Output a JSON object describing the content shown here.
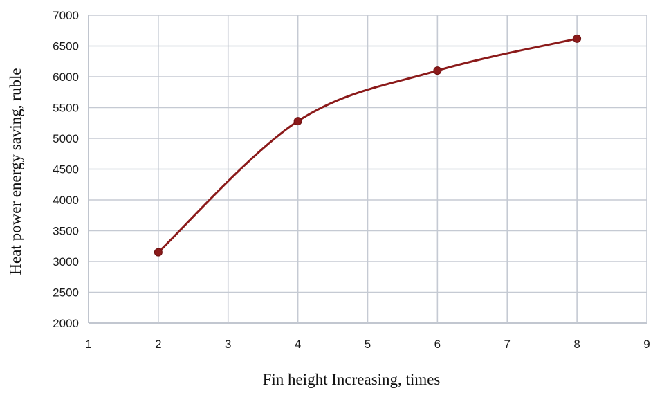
{
  "chart_data": {
    "type": "line",
    "title": "",
    "xlabel": "Fin height Increasing, times",
    "ylabel": "Heat power energy saving, ruble",
    "xlim": [
      1,
      9
    ],
    "ylim": [
      2000,
      7000
    ],
    "x_ticks": [
      1,
      2,
      3,
      4,
      5,
      6,
      7,
      8,
      9
    ],
    "y_ticks": [
      2000,
      2500,
      3000,
      3500,
      4000,
      4500,
      5000,
      5500,
      6000,
      6500,
      7000
    ],
    "grid": true,
    "smooth": true,
    "series": [
      {
        "x": [
          2,
          4,
          6,
          8
        ],
        "values": [
          3150,
          5280,
          6100,
          6620
        ],
        "color": "#8b1a1a",
        "marker": "circle"
      }
    ]
  }
}
